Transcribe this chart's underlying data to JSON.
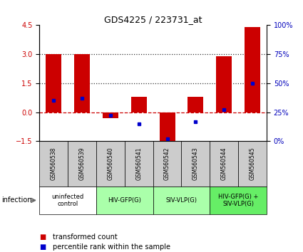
{
  "title": "GDS4225 / 223731_at",
  "samples": [
    "GSM560538",
    "GSM560539",
    "GSM560540",
    "GSM560541",
    "GSM560542",
    "GSM560543",
    "GSM560544",
    "GSM560545"
  ],
  "transformed_counts": [
    3.0,
    3.0,
    -0.3,
    0.8,
    -1.5,
    0.8,
    2.9,
    4.4
  ],
  "percentile_ranks": [
    35,
    37,
    22,
    15,
    2,
    17,
    27,
    50
  ],
  "ylim_left": [
    -1.5,
    4.5
  ],
  "yticks_left": [
    -1.5,
    0,
    1.5,
    3,
    4.5
  ],
  "yticks_right": [
    0,
    25,
    50,
    75,
    100
  ],
  "ylim_right": [
    0,
    100
  ],
  "hlines": [
    0.0,
    1.5,
    3.0
  ],
  "hline_styles": [
    "dashed",
    "dotted",
    "dotted"
  ],
  "hline_colors": [
    "#cc0000",
    "#333333",
    "#333333"
  ],
  "bar_color": "#cc0000",
  "dot_color": "#0000cc",
  "bar_width": 0.55,
  "groups": [
    {
      "label": "uninfected\ncontrol",
      "start": 0,
      "end": 1,
      "color": "#ffffff"
    },
    {
      "label": "HIV-GFP(G)",
      "start": 2,
      "end": 3,
      "color": "#aaffaa"
    },
    {
      "label": "SIV-VLP(G)",
      "start": 4,
      "end": 5,
      "color": "#aaffaa"
    },
    {
      "label": "HIV-GFP(G) +\nSIV-VLP(G)",
      "start": 6,
      "end": 7,
      "color": "#66ee66"
    }
  ],
  "infection_label": "infection",
  "legend_items": [
    {
      "color": "#cc0000",
      "label": "transformed count"
    },
    {
      "color": "#0000cc",
      "label": "percentile rank within the sample"
    }
  ],
  "sample_box_color": "#cccccc",
  "left_ycolor": "#cc0000",
  "right_ycolor": "#0000bb",
  "figsize": [
    4.25,
    3.54
  ],
  "dpi": 100
}
